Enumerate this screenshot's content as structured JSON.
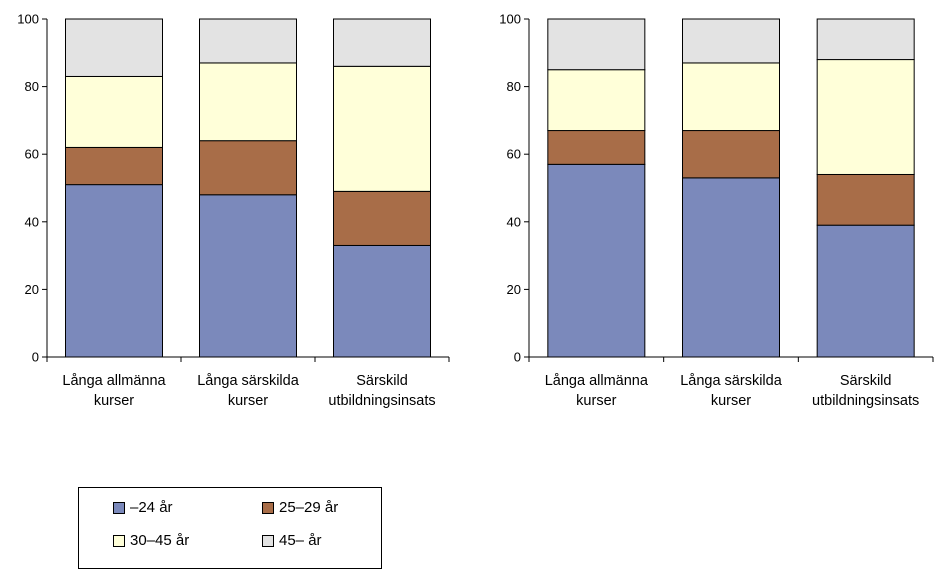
{
  "chart_data": [
    {
      "type": "bar",
      "stacked": true,
      "categories": [
        [
          "Långa allmänna",
          "kurser"
        ],
        [
          "Långa särskilda",
          "kurser"
        ],
        [
          "Särskild",
          "utbildningsinsats"
        ]
      ],
      "ylim": [
        0,
        100
      ],
      "yticks": [
        0,
        20,
        40,
        60,
        80,
        100
      ],
      "grid": false,
      "series": [
        {
          "name": "–24 år",
          "values": [
            51,
            48,
            33
          ],
          "color": "#7b89bb"
        },
        {
          "name": "25–29 år",
          "values": [
            11,
            16,
            16
          ],
          "color": "#a86d48"
        },
        {
          "name": "30–45 år",
          "values": [
            21,
            23,
            37
          ],
          "color": "#ffffd9"
        },
        {
          "name": "45– år",
          "values": [
            17,
            13,
            14
          ],
          "color": "#e3e3e3"
        }
      ]
    },
    {
      "type": "bar",
      "stacked": true,
      "categories": [
        [
          "Långa allmänna",
          "kurser"
        ],
        [
          "Långa särskilda",
          "kurser"
        ],
        [
          "Särskild",
          "utbildningsinsats"
        ]
      ],
      "ylim": [
        0,
        100
      ],
      "yticks": [
        0,
        20,
        40,
        60,
        80,
        100
      ],
      "grid": false,
      "series": [
        {
          "name": "–24 år",
          "values": [
            57,
            53,
            39
          ],
          "color": "#7b89bb"
        },
        {
          "name": "25–29 år",
          "values": [
            10,
            14,
            15
          ],
          "color": "#a86d48"
        },
        {
          "name": "30–45 år",
          "values": [
            18,
            20,
            34
          ],
          "color": "#ffffd9"
        },
        {
          "name": "45– år",
          "values": [
            15,
            13,
            12
          ],
          "color": "#e3e3e3"
        }
      ]
    }
  ],
  "legend": {
    "placement": "bottom-left",
    "items": [
      {
        "label": "–24 år",
        "color": "#7b89bb"
      },
      {
        "label": "25–29 år",
        "color": "#a86d48"
      },
      {
        "label": "30–45 år",
        "color": "#ffffd9"
      },
      {
        "label": "45– år",
        "color": "#e3e3e3"
      }
    ]
  }
}
